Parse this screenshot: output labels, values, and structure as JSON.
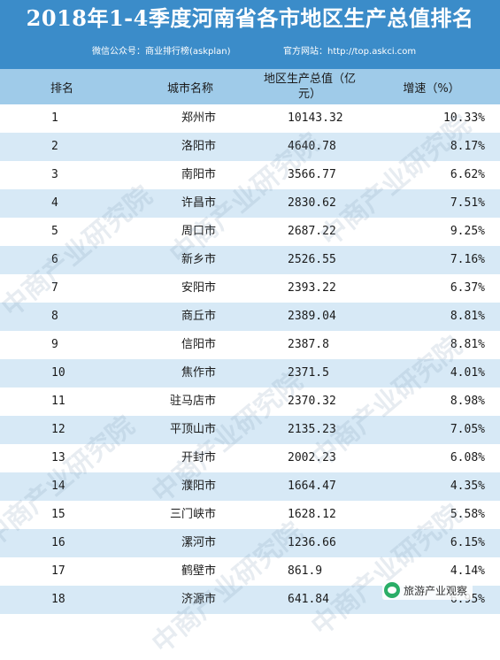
{
  "title": "2018年1-4季度河南省各市地区生产总值排名",
  "subtitle_left": "微信公众号：商业排行榜(askplan)",
  "subtitle_right": "官方网站：http://top.askci.com",
  "columns": {
    "rank": "排名",
    "city": "城市名称",
    "gdp_line1": "地区生产总值（亿",
    "gdp_line2": "元）",
    "growth": "增速（%）"
  },
  "rows": [
    {
      "rank": "1",
      "city": "郑州市",
      "gdp": "10143.32",
      "growth": "10.33%"
    },
    {
      "rank": "2",
      "city": "洛阳市",
      "gdp": "4640.78",
      "growth": "8.17%"
    },
    {
      "rank": "3",
      "city": "南阳市",
      "gdp": "3566.77",
      "growth": "6.62%"
    },
    {
      "rank": "4",
      "city": "许昌市",
      "gdp": "2830.62",
      "growth": "7.51%"
    },
    {
      "rank": "5",
      "city": "周口市",
      "gdp": "2687.22",
      "growth": "9.25%"
    },
    {
      "rank": "6",
      "city": "新乡市",
      "gdp": "2526.55",
      "growth": "7.16%"
    },
    {
      "rank": "7",
      "city": "安阳市",
      "gdp": "2393.22",
      "growth": "6.37%"
    },
    {
      "rank": "8",
      "city": "商丘市",
      "gdp": "2389.04",
      "growth": "8.81%"
    },
    {
      "rank": "9",
      "city": "信阳市",
      "gdp": "2387.8",
      "growth": "8.81%"
    },
    {
      "rank": "10",
      "city": "焦作市",
      "gdp": "2371.5",
      "growth": "4.01%"
    },
    {
      "rank": "11",
      "city": "驻马店市",
      "gdp": "2370.32",
      "growth": "8.98%"
    },
    {
      "rank": "12",
      "city": "平顶山市",
      "gdp": "2135.23",
      "growth": "7.05%"
    },
    {
      "rank": "13",
      "city": "开封市",
      "gdp": "2002.23",
      "growth": "6.08%"
    },
    {
      "rank": "14",
      "city": "濮阳市",
      "gdp": "1664.47",
      "growth": "4.35%"
    },
    {
      "rank": "15",
      "city": "三门峡市",
      "gdp": "1628.12",
      "growth": "5.58%"
    },
    {
      "rank": "16",
      "city": "漯河市",
      "gdp": "1236.66",
      "growth": "6.15%"
    },
    {
      "rank": "17",
      "city": "鹤壁市",
      "gdp": "861.9",
      "growth": "4.14%"
    },
    {
      "rank": "18",
      "city": "济源市",
      "gdp": "641.84",
      "growth": "6.95%"
    }
  ],
  "watermark_text": "中商产业研究院",
  "badge_text": "旅游产业观察",
  "colors": {
    "header": "#3b8cc9",
    "column_header": "#9fcbe9",
    "stripe": "#d7e9f6",
    "badge_icon": "#2aae67"
  }
}
